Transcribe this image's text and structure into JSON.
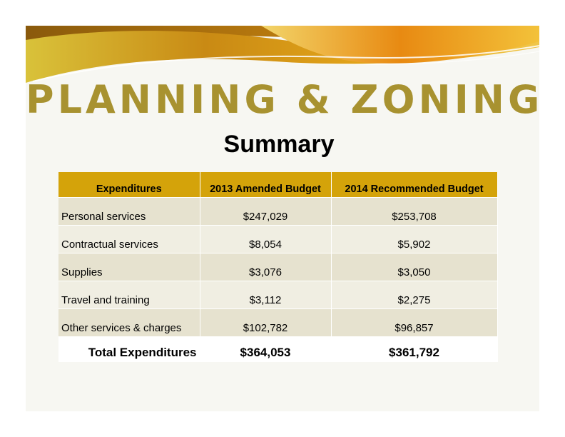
{
  "title": "PLANNING & ZONING",
  "subtitle": "Summary",
  "table": {
    "headers": [
      "Expenditures",
      "2013 Amended Budget",
      "2014 Recommended Budget"
    ],
    "rows": [
      {
        "label": "Personal services",
        "amended_2013": "$247,029",
        "recommended_2014": "$253,708"
      },
      {
        "label": "Contractual services",
        "amended_2013": "$8,054",
        "recommended_2014": "$5,902"
      },
      {
        "label": "Supplies",
        "amended_2013": "$3,076",
        "recommended_2014": "$3,050"
      },
      {
        "label": "Travel and training",
        "amended_2013": "$3,112",
        "recommended_2014": "$2,275"
      },
      {
        "label": "Other services & charges",
        "amended_2013": "$102,782",
        "recommended_2014": "$96,857"
      }
    ],
    "total": {
      "label": "Total Expenditures",
      "amended_2013": "$364,053",
      "recommended_2014": "$361,792"
    }
  },
  "colors": {
    "title": "#a89230",
    "header_fill": "#d4a30a",
    "banner_gold": "#e3b21c",
    "banner_orange": "#e27a10"
  }
}
